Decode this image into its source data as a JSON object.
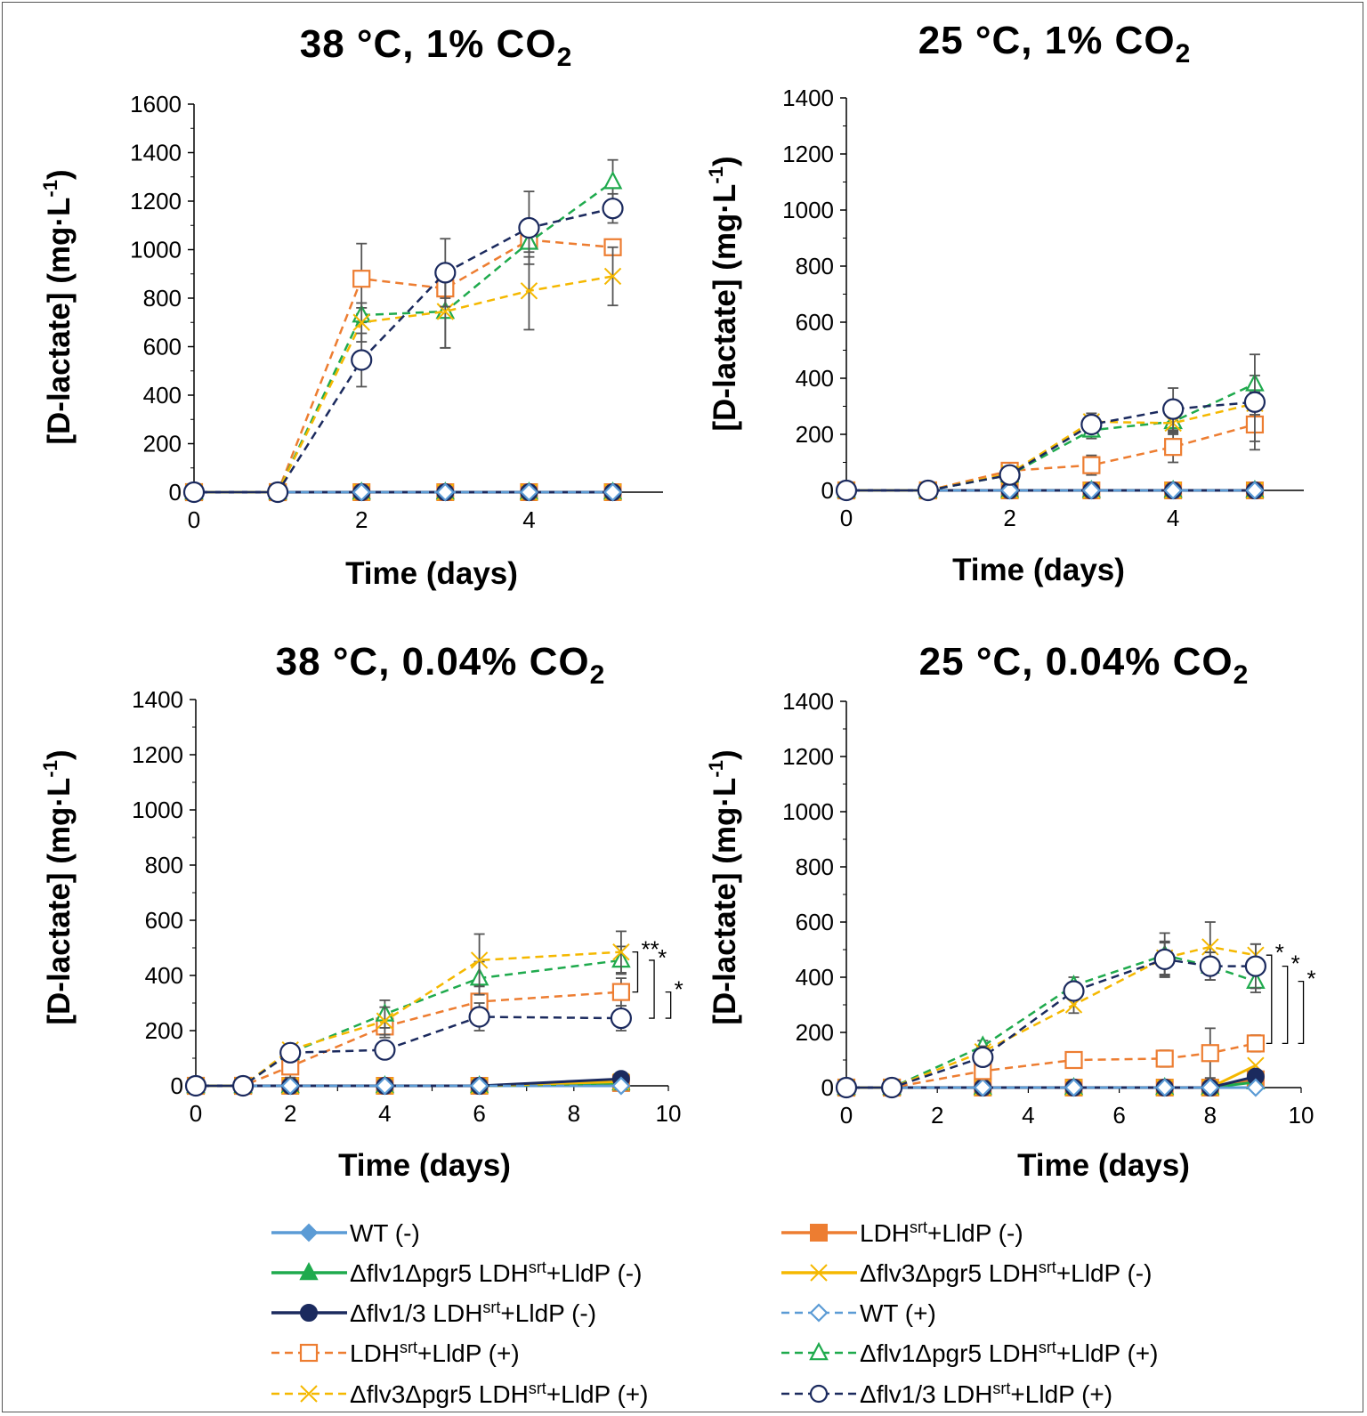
{
  "legend": [
    {
      "key": "wt_minus",
      "label": "WT (-)",
      "color": "#5b9bd5",
      "marker": "diamond",
      "filled": true,
      "dashed": false
    },
    {
      "key": "ldh_minus",
      "label": "LDHsrt+LldP (-)",
      "sup": "srt",
      "color": "#ed7d31",
      "marker": "square",
      "filled": true,
      "dashed": false
    },
    {
      "key": "flv1pgr5_minus",
      "label": "Δflv1Δpgr5 LDHsrt+LldP (-)",
      "sup": "srt",
      "color": "#1faa4d",
      "marker": "triangle",
      "filled": true,
      "dashed": false
    },
    {
      "key": "flv3pgr5_minus",
      "label": "Δflv3Δpgr5 LDHsrt+LldP (-)",
      "sup": "srt",
      "color": "#f5b800",
      "marker": "x",
      "filled": true,
      "dashed": false
    },
    {
      "key": "flv13_minus",
      "label": "Δflv1/3 LDHsrt+LldP (-)",
      "sup": "srt",
      "color": "#1b2a5e",
      "marker": "circle",
      "filled": true,
      "dashed": false
    },
    {
      "key": "wt_plus",
      "label": "WT (+)",
      "color": "#5b9bd5",
      "marker": "diamond",
      "filled": false,
      "dashed": true
    },
    {
      "key": "ldh_plus",
      "label": "LDHsrt+LldP (+)",
      "sup": "srt",
      "color": "#ed7d31",
      "marker": "square",
      "filled": false,
      "dashed": true
    },
    {
      "key": "flv1pgr5_plus",
      "label": "Δflv1Δpgr5 LDHsrt+LldP (+)",
      "sup": "srt",
      "color": "#1faa4d",
      "marker": "triangle",
      "filled": false,
      "dashed": true
    },
    {
      "key": "flv3pgr5_plus",
      "label": "Δflv3Δpgr5 LDHsrt+LldP (+)",
      "sup": "srt",
      "color": "#f5b800",
      "marker": "x",
      "filled": false,
      "dashed": true
    },
    {
      "key": "flv13_plus",
      "label": "Δflv1/3 LDHsrt+LldP (+)",
      "sup": "srt",
      "color": "#1b2a5e",
      "marker": "circle",
      "filled": false,
      "dashed": true
    }
  ],
  "chart_data": [
    {
      "id": "p1",
      "type": "line",
      "title": "38 °C, 1% CO2",
      "title_main": "38 °C, 1% CO",
      "title_sub": "2",
      "xlabel": "Time (days)",
      "ylabel": "[D-lactate] (mg·L-1)",
      "xlim": [
        0,
        5.5
      ],
      "xticks": [
        0,
        2,
        4
      ],
      "ylim": [
        0,
        1600
      ],
      "yticks": [
        0,
        200,
        400,
        600,
        800,
        1000,
        1200,
        1400,
        1600
      ],
      "series": [
        {
          "key": "wt_minus",
          "x": [
            0,
            1,
            2,
            3,
            4,
            5
          ],
          "y": [
            0,
            0,
            0,
            0,
            0,
            0
          ]
        },
        {
          "key": "ldh_minus",
          "x": [
            0,
            1,
            2,
            3,
            4,
            5
          ],
          "y": [
            0,
            0,
            0,
            0,
            0,
            0
          ]
        },
        {
          "key": "flv1pgr5_minus",
          "x": [
            0,
            1,
            2,
            3,
            4,
            5
          ],
          "y": [
            0,
            0,
            0,
            0,
            0,
            0
          ]
        },
        {
          "key": "flv3pgr5_minus",
          "x": [
            0,
            1,
            2,
            3,
            4,
            5
          ],
          "y": [
            0,
            0,
            0,
            0,
            0,
            0
          ]
        },
        {
          "key": "flv13_minus",
          "x": [
            0,
            1,
            2,
            3,
            4,
            5
          ],
          "y": [
            0,
            0,
            0,
            0,
            0,
            0
          ]
        },
        {
          "key": "wt_plus",
          "x": [
            0,
            1,
            2,
            3,
            4,
            5
          ],
          "y": [
            0,
            0,
            0,
            0,
            0,
            0
          ]
        },
        {
          "key": "ldh_plus",
          "x": [
            0,
            1,
            2,
            3,
            4,
            5
          ],
          "y": [
            0,
            0,
            880,
            840,
            1040,
            1010
          ],
          "err": [
            0,
            0,
            145,
            40,
            30,
            20
          ]
        },
        {
          "key": "flv1pgr5_plus",
          "x": [
            0,
            1,
            2,
            3,
            4,
            5
          ],
          "y": [
            0,
            0,
            730,
            745,
            1030,
            1280
          ],
          "err": [
            0,
            0,
            30,
            150,
            60,
            90
          ]
        },
        {
          "key": "flv3pgr5_plus",
          "x": [
            0,
            1,
            2,
            3,
            4,
            5
          ],
          "y": [
            0,
            0,
            700,
            745,
            830,
            890
          ],
          "err": [
            0,
            0,
            80,
            150,
            160,
            120
          ]
        },
        {
          "key": "flv13_plus",
          "x": [
            0,
            1,
            2,
            3,
            4,
            5
          ],
          "y": [
            0,
            0,
            545,
            905,
            1090,
            1170
          ],
          "err": [
            0,
            0,
            110,
            140,
            150,
            60
          ]
        }
      ],
      "sig": []
    },
    {
      "id": "p2",
      "type": "line",
      "title": "25 °C, 1% CO2",
      "title_main": "25 °C, 1% CO",
      "title_sub": "2",
      "xlabel": "Time (days)",
      "ylabel": "[D-lactate] (mg·L-1)",
      "xlim": [
        0,
        5.5
      ],
      "xticks": [
        0,
        2,
        4
      ],
      "ylim": [
        0,
        1400
      ],
      "yticks": [
        0,
        200,
        400,
        600,
        800,
        1000,
        1200,
        1400
      ],
      "series": [
        {
          "key": "wt_minus",
          "x": [
            0,
            1,
            2,
            3,
            4,
            5
          ],
          "y": [
            0,
            0,
            0,
            0,
            0,
            0
          ]
        },
        {
          "key": "ldh_minus",
          "x": [
            0,
            1,
            2,
            3,
            4,
            5
          ],
          "y": [
            0,
            0,
            0,
            0,
            0,
            0
          ]
        },
        {
          "key": "flv1pgr5_minus",
          "x": [
            0,
            1,
            2,
            3,
            4,
            5
          ],
          "y": [
            0,
            0,
            0,
            0,
            0,
            0
          ]
        },
        {
          "key": "flv3pgr5_minus",
          "x": [
            0,
            1,
            2,
            3,
            4,
            5
          ],
          "y": [
            0,
            0,
            0,
            0,
            0,
            0
          ]
        },
        {
          "key": "flv13_minus",
          "x": [
            0,
            1,
            2,
            3,
            4,
            5
          ],
          "y": [
            0,
            0,
            0,
            0,
            0,
            0
          ]
        },
        {
          "key": "wt_plus",
          "x": [
            0,
            1,
            2,
            3,
            4,
            5
          ],
          "y": [
            0,
            0,
            0,
            0,
            0,
            0
          ]
        },
        {
          "key": "ldh_plus",
          "x": [
            0,
            1,
            2,
            3,
            4,
            5
          ],
          "y": [
            0,
            0,
            70,
            90,
            155,
            235
          ],
          "err": [
            0,
            0,
            10,
            35,
            55,
            60
          ]
        },
        {
          "key": "flv1pgr5_plus",
          "x": [
            0,
            1,
            2,
            3,
            4,
            5
          ],
          "y": [
            0,
            0,
            55,
            215,
            245,
            380
          ],
          "err": [
            0,
            0,
            10,
            30,
            40,
            30
          ]
        },
        {
          "key": "flv3pgr5_plus",
          "x": [
            0,
            1,
            2,
            3,
            4,
            5
          ],
          "y": [
            0,
            0,
            60,
            245,
            240,
            310
          ],
          "err": [
            0,
            0,
            10,
            30,
            40,
            40
          ]
        },
        {
          "key": "flv13_plus",
          "x": [
            0,
            1,
            2,
            3,
            4,
            5
          ],
          "y": [
            0,
            0,
            55,
            235,
            290,
            315
          ],
          "err": [
            0,
            0,
            10,
            25,
            75,
            170
          ]
        }
      ],
      "sig": []
    },
    {
      "id": "p3",
      "type": "line",
      "title": "38 °C, 0.04% CO2",
      "title_main": "38 °C, 0.04% CO",
      "title_sub": "2",
      "xlabel": "Time (days)",
      "ylabel": "[D-lactate] (mg·L-1)",
      "xlim": [
        0,
        10
      ],
      "xticks": [
        0,
        2,
        4,
        6,
        8,
        10
      ],
      "ylim": [
        0,
        1400
      ],
      "yticks": [
        0,
        200,
        400,
        600,
        800,
        1000,
        1200,
        1400
      ],
      "series": [
        {
          "key": "wt_minus",
          "x": [
            0,
            1,
            2,
            4,
            6,
            9
          ],
          "y": [
            0,
            0,
            0,
            0,
            0,
            0
          ]
        },
        {
          "key": "ldh_minus",
          "x": [
            0,
            1,
            2,
            4,
            6,
            9
          ],
          "y": [
            0,
            0,
            0,
            0,
            0,
            10
          ]
        },
        {
          "key": "flv1pgr5_minus",
          "x": [
            0,
            1,
            2,
            4,
            6,
            9
          ],
          "y": [
            0,
            0,
            0,
            0,
            0,
            10
          ]
        },
        {
          "key": "flv3pgr5_minus",
          "x": [
            0,
            1,
            2,
            4,
            6,
            9
          ],
          "y": [
            0,
            0,
            0,
            0,
            0,
            15
          ]
        },
        {
          "key": "flv13_minus",
          "x": [
            0,
            1,
            2,
            4,
            6,
            9
          ],
          "y": [
            0,
            0,
            0,
            0,
            0,
            25
          ]
        },
        {
          "key": "wt_plus",
          "x": [
            0,
            1,
            2,
            4,
            6,
            9
          ],
          "y": [
            0,
            0,
            0,
            0,
            0,
            0
          ]
        },
        {
          "key": "ldh_plus",
          "x": [
            0,
            1,
            2,
            4,
            6,
            9
          ],
          "y": [
            0,
            0,
            70,
            215,
            305,
            340
          ],
          "err": [
            0,
            0,
            40,
            40,
            60,
            50
          ]
        },
        {
          "key": "flv1pgr5_plus",
          "x": [
            0,
            1,
            2,
            4,
            6,
            9
          ],
          "y": [
            0,
            0,
            120,
            260,
            390,
            455
          ],
          "err": [
            0,
            0,
            20,
            50,
            60,
            50
          ]
        },
        {
          "key": "flv3pgr5_plus",
          "x": [
            0,
            1,
            2,
            4,
            6,
            9
          ],
          "y": [
            0,
            0,
            130,
            235,
            455,
            485
          ],
          "err": [
            0,
            0,
            20,
            50,
            95,
            75
          ]
        },
        {
          "key": "flv13_plus",
          "x": [
            0,
            1,
            2,
            4,
            6,
            9
          ],
          "y": [
            0,
            0,
            120,
            130,
            250,
            245
          ],
          "err": [
            0,
            0,
            20,
            25,
            50,
            45
          ]
        }
      ],
      "sig": [
        {
          "label": "**",
          "y1": 485,
          "y2": 340,
          "x": 9.35
        },
        {
          "label": "*",
          "y1": 455,
          "y2": 245,
          "x": 9.7
        },
        {
          "label": "*",
          "y1": 340,
          "y2": 245,
          "x": 10.05
        }
      ]
    },
    {
      "id": "p4",
      "type": "line",
      "title": "25 °C, 0.04% CO2",
      "title_main": "25 °C, 0.04% CO",
      "title_sub": "2",
      "xlabel": "Time (days)",
      "ylabel": "[D-lactate] (mg·L-1)",
      "xlim": [
        0,
        10
      ],
      "xticks": [
        0,
        2,
        4,
        6,
        8,
        10
      ],
      "ylim": [
        0,
        1400
      ],
      "yticks": [
        0,
        200,
        400,
        600,
        800,
        1000,
        1200,
        1400
      ],
      "series": [
        {
          "key": "wt_minus",
          "x": [
            0,
            1,
            3,
            5,
            7,
            8,
            9
          ],
          "y": [
            0,
            0,
            0,
            0,
            0,
            0,
            0
          ]
        },
        {
          "key": "ldh_minus",
          "x": [
            0,
            1,
            3,
            5,
            7,
            8,
            9
          ],
          "y": [
            0,
            0,
            0,
            0,
            0,
            0,
            30
          ]
        },
        {
          "key": "flv1pgr5_minus",
          "x": [
            0,
            1,
            3,
            5,
            7,
            8,
            9
          ],
          "y": [
            0,
            0,
            0,
            0,
            0,
            0,
            20
          ]
        },
        {
          "key": "flv3pgr5_minus",
          "x": [
            0,
            1,
            3,
            5,
            7,
            8,
            9
          ],
          "y": [
            0,
            0,
            0,
            0,
            0,
            0,
            80
          ]
        },
        {
          "key": "flv13_minus",
          "x": [
            0,
            1,
            3,
            5,
            7,
            8,
            9
          ],
          "y": [
            0,
            0,
            0,
            0,
            0,
            0,
            40
          ]
        },
        {
          "key": "wt_plus",
          "x": [
            0,
            1,
            3,
            5,
            7,
            8,
            9
          ],
          "y": [
            0,
            0,
            0,
            0,
            0,
            0,
            0
          ]
        },
        {
          "key": "ldh_plus",
          "x": [
            0,
            1,
            3,
            5,
            7,
            8,
            9
          ],
          "y": [
            0,
            0,
            60,
            100,
            105,
            125,
            160
          ],
          "err": [
            0,
            0,
            20,
            25,
            30,
            90,
            30
          ]
        },
        {
          "key": "flv1pgr5_plus",
          "x": [
            0,
            1,
            3,
            5,
            7,
            8,
            9
          ],
          "y": [
            0,
            0,
            150,
            370,
            480,
            440,
            385
          ],
          "err": [
            0,
            0,
            20,
            30,
            80,
            50,
            40
          ]
        },
        {
          "key": "flv3pgr5_plus",
          "x": [
            0,
            1,
            3,
            5,
            7,
            8,
            9
          ],
          "y": [
            0,
            0,
            130,
            300,
            470,
            510,
            480
          ],
          "err": [
            0,
            0,
            20,
            30,
            60,
            90,
            40
          ]
        },
        {
          "key": "flv13_plus",
          "x": [
            0,
            1,
            3,
            5,
            7,
            8,
            9
          ],
          "y": [
            0,
            0,
            110,
            350,
            465,
            440,
            440
          ],
          "err": [
            0,
            0,
            20,
            30,
            60,
            50,
            80
          ]
        }
      ],
      "sig": [
        {
          "label": "*",
          "y1": 480,
          "y2": 160,
          "x": 9.35
        },
        {
          "label": "*",
          "y1": 440,
          "y2": 160,
          "x": 9.7
        },
        {
          "label": "*",
          "y1": 385,
          "y2": 160,
          "x": 10.05
        }
      ]
    }
  ]
}
